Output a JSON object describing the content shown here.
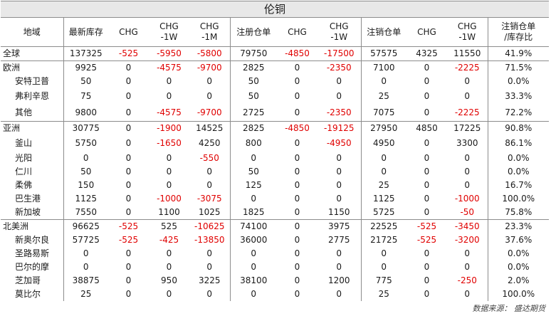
{
  "title": "伦铜",
  "headers": [
    "地域",
    "最新库存",
    "CHG",
    "CHG\n-1W",
    "CHG\n-1M",
    "注册仓单",
    "CHG",
    "CHG\n-1W",
    "注销仓单",
    "CHG",
    "CHG\n-1W",
    "注销仓单\n/库存比"
  ],
  "rows": [
    {
      "region": "全球",
      "sub": false,
      "group": true,
      "cells": [
        "137325",
        "-525",
        "-5950",
        "-5800",
        "79750",
        "-4850",
        "-17500",
        "57575",
        "4325",
        "11550",
        "41.9%"
      ]
    },
    {
      "region": "欧洲",
      "sub": false,
      "group": true,
      "cells": [
        "9925",
        "0",
        "-4575",
        "-9700",
        "2825",
        "0",
        "-2350",
        "7100",
        "0",
        "-2225",
        "71.5%"
      ]
    },
    {
      "region": "安特卫普",
      "sub": true,
      "group": false,
      "cells": [
        "50",
        "0",
        "0",
        "0",
        "50",
        "0",
        "0",
        "0",
        "0",
        "0",
        "0.0%"
      ]
    },
    {
      "region": "弗利辛恩",
      "sub": true,
      "group": false,
      "tall": true,
      "cells": [
        "75",
        "0",
        "0",
        "0",
        "50",
        "0",
        "0",
        "25",
        "0",
        "0",
        "33.3%"
      ]
    },
    {
      "region": "其他",
      "sub": true,
      "group": false,
      "tall": true,
      "cells": [
        "9800",
        "0",
        "-4575",
        "-9700",
        "2725",
        "0",
        "-2350",
        "7075",
        "0",
        "-2225",
        "72.2%"
      ]
    },
    {
      "region": "亚洲",
      "sub": false,
      "group": true,
      "cells": [
        "30775",
        "0",
        "-1900",
        "14525",
        "2825",
        "-4850",
        "-19125",
        "27950",
        "4850",
        "17225",
        "90.8%"
      ]
    },
    {
      "region": "釜山",
      "sub": true,
      "group": false,
      "tall": true,
      "cells": [
        "5750",
        "0",
        "-1650",
        "4250",
        "800",
        "0",
        "-4950",
        "4950",
        "0",
        "3300",
        "86.1%"
      ]
    },
    {
      "region": "光阳",
      "sub": true,
      "group": false,
      "cells": [
        "0",
        "0",
        "0",
        "-550",
        "0",
        "0",
        "0",
        "0",
        "0",
        "0",
        "0.0%"
      ]
    },
    {
      "region": "仁川",
      "sub": true,
      "group": false,
      "cells": [
        "50",
        "0",
        "0",
        "0",
        "50",
        "0",
        "0",
        "0",
        "0",
        "0",
        "0.0%"
      ]
    },
    {
      "region": "柔佛",
      "sub": true,
      "group": false,
      "cells": [
        "150",
        "0",
        "0",
        "0",
        "125",
        "0",
        "0",
        "25",
        "0",
        "0",
        "16.7%"
      ]
    },
    {
      "region": "巴生港",
      "sub": true,
      "group": false,
      "cells": [
        "1125",
        "0",
        "-1000",
        "-3075",
        "0",
        "0",
        "0",
        "1125",
        "0",
        "-1000",
        "100.0%"
      ]
    },
    {
      "region": "新加坡",
      "sub": true,
      "group": false,
      "cells": [
        "7550",
        "0",
        "1100",
        "1025",
        "1825",
        "0",
        "1150",
        "5725",
        "0",
        "-50",
        "75.8%"
      ]
    },
    {
      "region": "北美洲",
      "sub": false,
      "group": true,
      "cells": [
        "96625",
        "-525",
        "525",
        "-10625",
        "74100",
        "0",
        "3975",
        "22525",
        "-525",
        "-3450",
        "23.3%"
      ]
    },
    {
      "region": "新奥尔良",
      "sub": true,
      "group": false,
      "cells": [
        "57725",
        "-525",
        "-425",
        "-13850",
        "36000",
        "0",
        "2775",
        "21725",
        "-525",
        "-3200",
        "37.6%"
      ]
    },
    {
      "region": "圣路易斯",
      "sub": true,
      "group": false,
      "cells": [
        "0",
        "0",
        "0",
        "0",
        "0",
        "0",
        "0",
        "0",
        "0",
        "0",
        "0.0%"
      ]
    },
    {
      "region": "巴尔的摩",
      "sub": true,
      "group": false,
      "cells": [
        "0",
        "0",
        "0",
        "0",
        "0",
        "0",
        "0",
        "0",
        "0",
        "0",
        "0.0%"
      ]
    },
    {
      "region": "芝加哥",
      "sub": true,
      "group": false,
      "cells": [
        "38875",
        "0",
        "950",
        "3225",
        "38100",
        "0",
        "1200",
        "775",
        "0",
        "-250",
        "2.0%"
      ]
    },
    {
      "region": "莫比尔",
      "sub": true,
      "group": false,
      "cells": [
        "25",
        "0",
        "0",
        "0",
        "0",
        "0",
        "0",
        "25",
        "0",
        "0",
        "100.0%"
      ]
    }
  ],
  "footer": "数据来源： 盛达期货",
  "colors": {
    "negative": "#e00000",
    "title_bg": "#e8e8e8",
    "rule": "#8c8c8c"
  }
}
